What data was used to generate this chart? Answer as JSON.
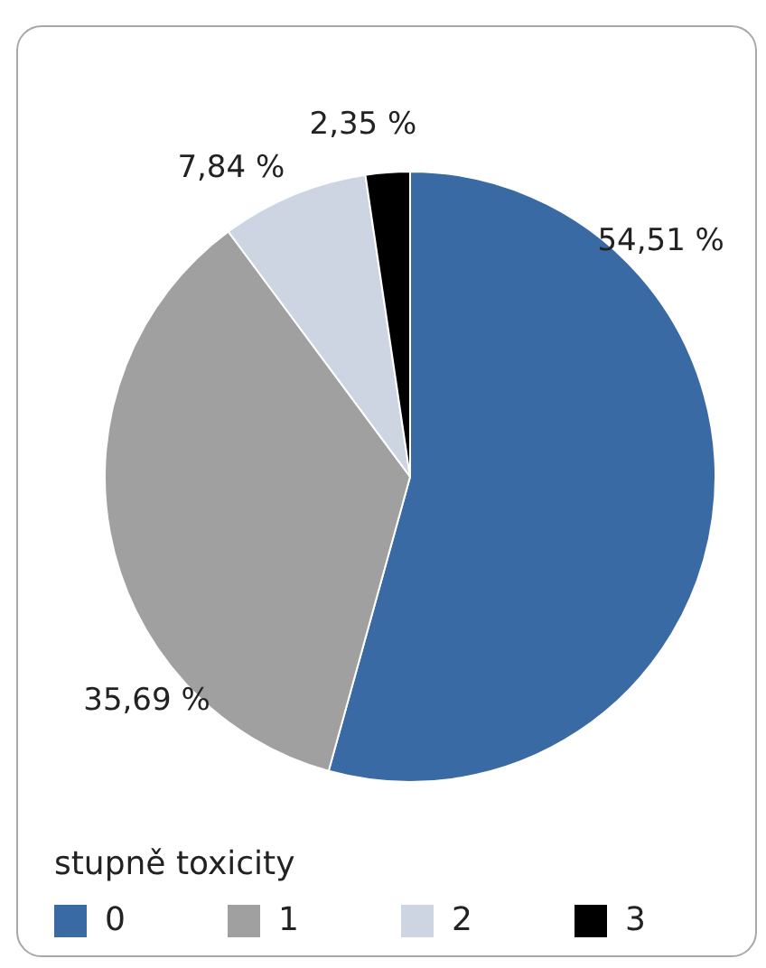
{
  "chart_data": {
    "type": "pie",
    "legend_title": "stupně toxicity",
    "categories": [
      "0",
      "1",
      "2",
      "3"
    ],
    "values": [
      54.51,
      35.69,
      7.84,
      2.35
    ],
    "colors": [
      "#3a6aa3",
      "#a0a0a0",
      "#cdd5e3",
      "#000000"
    ],
    "value_labels": [
      "54,51 %",
      "35,69 %",
      "7,84 %",
      "2,35 %"
    ],
    "legend": "bottom left"
  }
}
